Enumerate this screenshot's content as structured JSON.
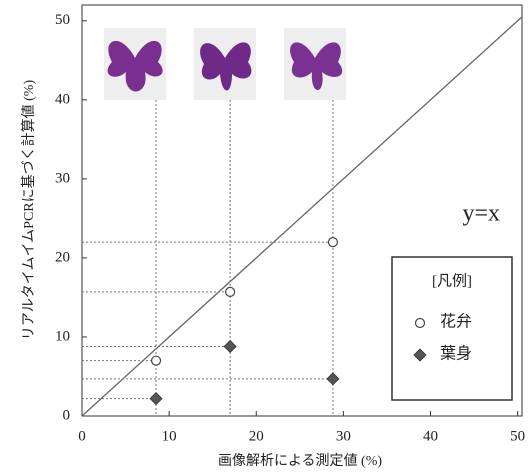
{
  "chart_data": {
    "type": "scatter",
    "annotation": "y=x",
    "xlabel": "画像解析による測定値 (%)",
    "ylabel": "リアルタイムイムPCRに基づく計算値 (%)",
    "legend_title": "[凡例]",
    "legend": "lower right",
    "xlim": [
      0,
      50.5
    ],
    "ylim": [
      0,
      52
    ],
    "xticks": [
      0,
      10,
      20,
      30,
      40,
      50
    ],
    "yticks": [
      0,
      10,
      20,
      30,
      40,
      50
    ],
    "series": [
      {
        "name": "花弁",
        "marker": "circle",
        "color": "#ffffff",
        "x": [
          8.5,
          17,
          28.8
        ],
        "values": [
          7,
          15.7,
          22
        ]
      },
      {
        "name": "葉身",
        "marker": "diamond",
        "color": "#555555",
        "x": [
          8.5,
          17,
          28.8
        ],
        "values": [
          2.2,
          8.8,
          4.7
        ]
      }
    ]
  }
}
